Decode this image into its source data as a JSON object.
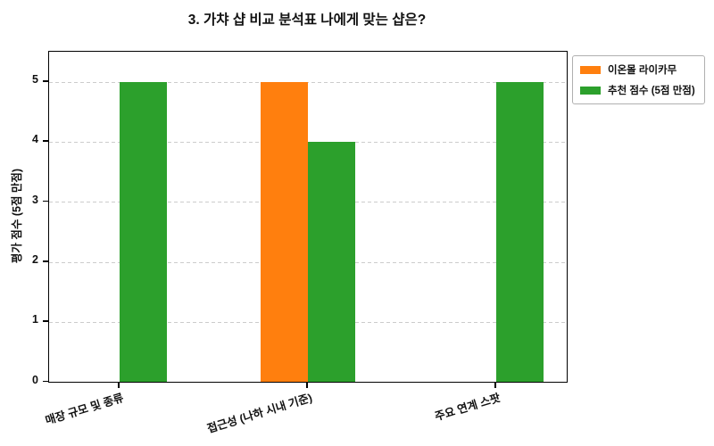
{
  "chart_data": {
    "type": "bar",
    "title": "3. 가챠 샵 비교 분석표 나에게 맞는 샵은?",
    "categories": [
      "매장 규모 및 종류",
      "접근성 (나하 시내 기준)",
      "주요 연계 스팟"
    ],
    "series": [
      {
        "name": "이온몰 라이카무",
        "color": "#ff7f0e",
        "values": [
          0,
          5,
          0
        ]
      },
      {
        "name": "추천 점수 (5점 만점)",
        "color": "#2ca02c",
        "values": [
          5,
          4,
          5
        ]
      }
    ],
    "xlabel": "",
    "ylabel": "평가 점수 (5점 만점)",
    "yticks": [
      0,
      1,
      2,
      3,
      4,
      5
    ],
    "ylim": [
      0,
      5.5
    ],
    "xlim": [
      -0.375,
      2.375
    ],
    "bar_width": 0.25,
    "grid": {
      "axis": "y",
      "style": "dashed",
      "color": "#cccccc"
    },
    "legend": {
      "position": "outside-top-right"
    },
    "axis_color": "#000000",
    "text_color": "#111111"
  }
}
